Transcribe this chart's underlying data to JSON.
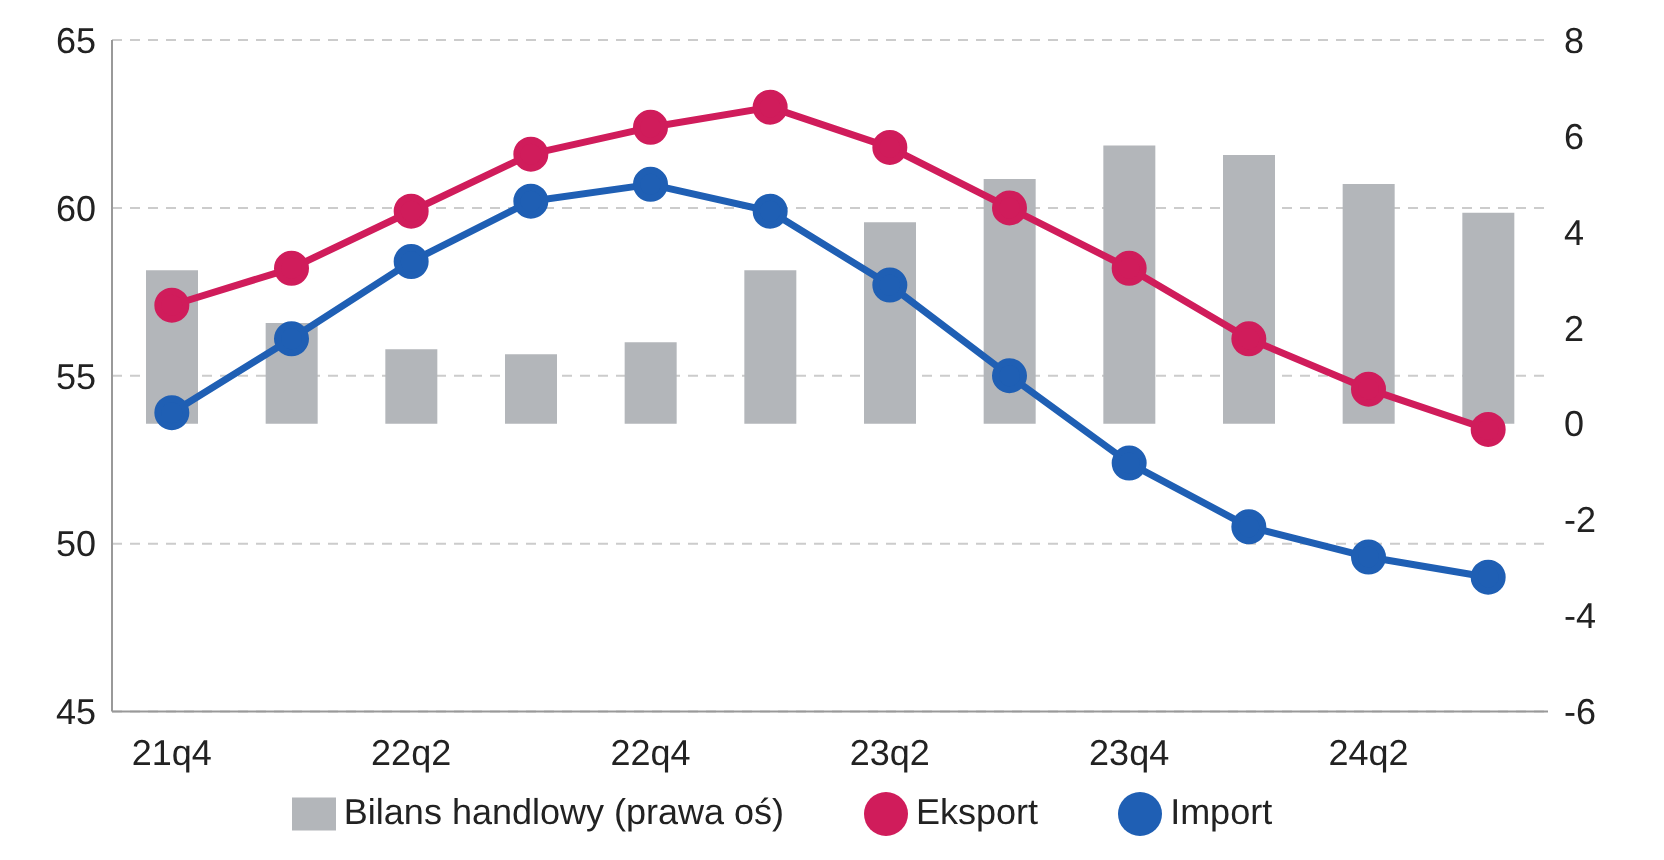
{
  "chart_data": {
    "type": "line",
    "categories": [
      "21q4",
      null,
      "22q2",
      null,
      "22q4",
      null,
      "23q2",
      null,
      "23q4",
      null,
      "24q2",
      null
    ],
    "series": [
      {
        "name": "Bilans handlowy (prawa oś)",
        "type": "bar",
        "axis": "y2",
        "color": "#b3b6ba",
        "values": [
          3.2,
          2.1,
          1.55,
          1.45,
          1.7,
          3.2,
          4.2,
          5.1,
          5.8,
          5.6,
          5.0,
          4.4
        ]
      },
      {
        "name": "Eksport",
        "color": "#d01c5b",
        "values": [
          57.1,
          58.2,
          59.9,
          61.6,
          62.4,
          63.0,
          61.8,
          60.0,
          58.2,
          56.1,
          54.6,
          53.4
        ]
      },
      {
        "name": "Import",
        "color": "#1f5fb4",
        "values": [
          53.9,
          56.1,
          58.4,
          60.2,
          60.7,
          59.9,
          57.7,
          55.0,
          52.4,
          50.5,
          49.6,
          49.0
        ]
      }
    ],
    "ylim": [
      45,
      65
    ],
    "yticks": [
      45,
      50,
      55,
      60,
      65
    ],
    "y2lim": [
      -6,
      8
    ],
    "y2ticks": [
      -6,
      -4,
      -2,
      0,
      2,
      4,
      6,
      8
    ],
    "grid": "y",
    "legend": "bottom",
    "marker": "circle",
    "line_style": "solid"
  }
}
